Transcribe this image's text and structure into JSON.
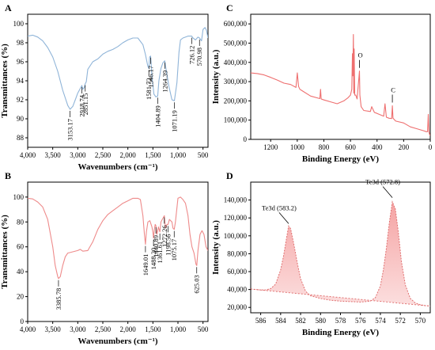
{
  "chart_data": [
    {
      "panel": "A",
      "type": "line",
      "xlabel": "Wavenumbers (cm⁻¹)",
      "ylabel": "Transmittances (%)",
      "xlim": [
        4000,
        400
      ],
      "ylim": [
        87,
        101
      ],
      "xticks": [
        4000,
        3500,
        3000,
        2500,
        2000,
        1500,
        1000,
        500
      ],
      "xtick_labels": [
        "4,000",
        "3,500",
        "3,000",
        "2,500",
        "2,000",
        "1,500",
        "1,000",
        "500"
      ],
      "yticks": [
        88,
        90,
        92,
        94,
        96,
        98,
        100
      ],
      "ytick_labels": [
        "88",
        "90",
        "92",
        "94",
        "96",
        "98",
        "100"
      ],
      "line_color": "#8fb4d8",
      "series": [
        {
          "x": [
            4000,
            3900,
            3800,
            3700,
            3600,
            3500,
            3400,
            3300,
            3200,
            3153,
            3100,
            3050,
            3000,
            2950,
            2918,
            2900,
            2870,
            2851,
            2830,
            2800,
            2700,
            2600,
            2500,
            2400,
            2300,
            2200,
            2100,
            2000,
            1900,
            1800,
            1700,
            1650,
            1600,
            1581,
            1565,
            1546,
            1520,
            1480,
            1440,
            1404,
            1380,
            1340,
            1300,
            1264,
            1230,
            1180,
            1120,
            1071,
            1020,
            980,
            950,
            900,
            800,
            726,
            700,
            650,
            600,
            570,
            530,
            500,
            460,
            430,
            400
          ],
          "y": [
            98.7,
            98.8,
            98.6,
            98.2,
            97.5,
            96.5,
            95,
            93,
            91.4,
            91,
            91.3,
            92,
            92.7,
            93.2,
            93.5,
            93.1,
            93.3,
            93.7,
            93.9,
            95.2,
            96,
            96.3,
            96.8,
            97.1,
            97.3,
            97.6,
            98,
            98.3,
            98.5,
            98.5,
            97.8,
            96.8,
            95.5,
            95.3,
            96.5,
            96.6,
            94.5,
            92.6,
            92.3,
            92.4,
            94,
            95.3,
            95.9,
            96.1,
            95,
            93.4,
            92,
            91.9,
            93.8,
            97,
            98.3,
            98.5,
            98.7,
            98.7,
            98.5,
            98.3,
            98.6,
            98.5,
            98.2,
            99.4,
            99.6,
            99.3,
            98.5
          ]
        }
      ],
      "annotations": [
        {
          "label": "3153.17",
          "x": 3153
        },
        {
          "label": "2918.74",
          "x": 2918
        },
        {
          "label": "2851.15",
          "x": 2851
        },
        {
          "label": "1546.17",
          "x": 1546
        },
        {
          "label": "1581.72",
          "x": 1581
        },
        {
          "label": "1404.89",
          "x": 1404
        },
        {
          "label": "1264.39",
          "x": 1264
        },
        {
          "label": "1071.19",
          "x": 1071
        },
        {
          "label": "726.12",
          "x": 726
        },
        {
          "label": "570.98",
          "x": 570
        }
      ]
    },
    {
      "panel": "B",
      "type": "line",
      "xlabel": "Wavenumbers (cm⁻¹)",
      "ylabel": "Transmittances (%)",
      "xlim": [
        4000,
        400
      ],
      "ylim": [
        0,
        112
      ],
      "xticks": [
        4000,
        3500,
        3000,
        2500,
        2000,
        1500,
        1000,
        500
      ],
      "xtick_labels": [
        "4,000",
        "3,500",
        "3,000",
        "2,500",
        "2,000",
        "1,500",
        "1,000",
        "500"
      ],
      "yticks": [
        0,
        20,
        40,
        60,
        80,
        100
      ],
      "ytick_labels": [
        "0",
        "20",
        "40",
        "60",
        "80",
        "100"
      ],
      "line_color": "#ee8a8a",
      "series": [
        {
          "x": [
            4000,
            3900,
            3800,
            3700,
            3600,
            3500,
            3450,
            3400,
            3385,
            3350,
            3300,
            3250,
            3200,
            3100,
            3000,
            2950,
            2900,
            2800,
            2700,
            2600,
            2500,
            2400,
            2300,
            2200,
            2100,
            2000,
            1900,
            1800,
            1750,
            1700,
            1670,
            1649,
            1630,
            1600,
            1560,
            1520,
            1500,
            1488,
            1470,
            1455,
            1440,
            1420,
            1390,
            1361,
            1340,
            1300,
            1272,
            1250,
            1220,
            1198,
            1170,
            1120,
            1100,
            1075,
            1050,
            1000,
            950,
            900,
            850,
            800,
            760,
            720,
            680,
            640,
            625,
            600,
            560,
            520,
            480,
            440,
            400
          ],
          "y": [
            99,
            98.5,
            96,
            92,
            82,
            60,
            45,
            36,
            34.5,
            36,
            45,
            52,
            55,
            56,
            57,
            58,
            56.5,
            57,
            64,
            74,
            81,
            86,
            89,
            92,
            95,
            97,
            99,
            99,
            98,
            85,
            70,
            62,
            72,
            80,
            81,
            76,
            72,
            67,
            74,
            78,
            77,
            70,
            76,
            72,
            80,
            83,
            85,
            75,
            78,
            78,
            82,
            80,
            75,
            74,
            80,
            99,
            100,
            98,
            95,
            85,
            70,
            60,
            55,
            46,
            45,
            57,
            70,
            73,
            70,
            60,
            57
          ]
        }
      ],
      "annotations": [
        {
          "label": "3385.78",
          "x": 3385
        },
        {
          "label": "1649.01",
          "x": 1649
        },
        {
          "label": "1488.20",
          "x": 1488
        },
        {
          "label": "1440.89",
          "x": 1440
        },
        {
          "label": "1361.61",
          "x": 1361
        },
        {
          "label": "1272.26",
          "x": 1272
        },
        {
          "label": "1198.56",
          "x": 1198
        },
        {
          "label": "1075.17",
          "x": 1075
        },
        {
          "label": "625.03",
          "x": 625
        }
      ]
    },
    {
      "panel": "C",
      "type": "line",
      "xlabel": "Binding Energy (eV)",
      "ylabel": "Intensity (a.u.)",
      "xlim": [
        1350,
        0
      ],
      "ylim": [
        0,
        650000
      ],
      "xticks": [
        1200,
        1000,
        800,
        600,
        400,
        200,
        0
      ],
      "xtick_labels": [
        "1200",
        "1000",
        "800",
        "600",
        "400",
        "200",
        "0"
      ],
      "yticks": [
        0,
        100000,
        200000,
        300000,
        400000,
        500000,
        600000
      ],
      "ytick_labels": [
        "0",
        "100,000",
        "200,000",
        "300,000",
        "400,000",
        "500,000",
        "600,000"
      ],
      "line_color": "#ee6f6f",
      "series": [
        {
          "x": [
            1350,
            1300,
            1250,
            1200,
            1150,
            1100,
            1050,
            1010,
            1000,
            990,
            980,
            900,
            830,
            825,
            820,
            800,
            750,
            700,
            650,
            620,
            600,
            590,
            585,
            582,
            578,
            575,
            572,
            568,
            560,
            550,
            532,
            529,
            520,
            500,
            450,
            440,
            420,
            400,
            350,
            340,
            330,
            310,
            290,
            285,
            280,
            260,
            200,
            150,
            100,
            50,
            30,
            20,
            15,
            10,
            5,
            0
          ],
          "y": [
            345000,
            342000,
            335000,
            322000,
            308000,
            292000,
            285000,
            270000,
            345000,
            275000,
            260000,
            225000,
            212000,
            260000,
            210000,
            205000,
            195000,
            185000,
            200000,
            215000,
            230000,
            260000,
            445000,
            330000,
            545000,
            240000,
            470000,
            230000,
            230000,
            210000,
            355000,
            230000,
            170000,
            150000,
            145000,
            170000,
            140000,
            135000,
            120000,
            185000,
            115000,
            110000,
            108000,
            175000,
            110000,
            95000,
            85000,
            65000,
            55000,
            45000,
            40000,
            40000,
            130000,
            40000,
            25000,
            20000
          ]
        }
      ],
      "annotations": [
        {
          "label": "O",
          "x": 532
        },
        {
          "label": "C",
          "x": 285
        }
      ]
    },
    {
      "panel": "D",
      "type": "area",
      "xlabel": "Binding Energy (eV)",
      "ylabel": "Intensity (a.u.)",
      "xlim": [
        587,
        569
      ],
      "ylim": [
        14000,
        160000
      ],
      "xticks": [
        586,
        584,
        582,
        580,
        578,
        576,
        574,
        572,
        570
      ],
      "xtick_labels": [
        "586",
        "584",
        "582",
        "580",
        "578",
        "576",
        "574",
        "572",
        "570"
      ],
      "yticks": [
        20000,
        40000,
        60000,
        80000,
        100000,
        120000,
        140000
      ],
      "ytick_labels": [
        "20,000",
        "40,000",
        "60,000",
        "80,000",
        "100,000",
        "120,000",
        "140,000"
      ],
      "fill_color": "#f5a3a3",
      "line_color": "#e07070",
      "series": [
        {
          "name": "envelope",
          "x": [
            587,
            586.5,
            586,
            585.5,
            585,
            584.5,
            584,
            583.7,
            583.4,
            583.2,
            583,
            582.7,
            582.3,
            582,
            581.5,
            581,
            580,
            579,
            578,
            577,
            576,
            575,
            574.5,
            574,
            573.7,
            573.4,
            573.1,
            572.8,
            572.5,
            572.2,
            571.9,
            571.5,
            571,
            570.5,
            570,
            569.5,
            569
          ],
          "y": [
            40500,
            40000,
            39500,
            39500,
            41000,
            46000,
            62000,
            78000,
            98000,
            111000,
            108000,
            92000,
            68000,
            52000,
            38000,
            33000,
            30000,
            28000,
            27000,
            26500,
            26000,
            27000,
            31000,
            44000,
            62000,
            86000,
            115000,
            138000,
            130000,
            104000,
            72000,
            45000,
            30000,
            25000,
            23000,
            22000,
            21500
          ]
        },
        {
          "name": "baseline",
          "x": [
            587,
            569
          ],
          "y": [
            40500,
            21500
          ]
        }
      ],
      "annotations": [
        {
          "label": "Te3d (583.2)",
          "x": 583.2,
          "y": 111000
        },
        {
          "label": "Te3d (572.8)",
          "x": 572.8,
          "y": 140000
        }
      ]
    }
  ]
}
